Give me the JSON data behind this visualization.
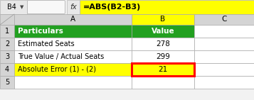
{
  "formula_bar_cell": "B4",
  "formula_bar_formula": "=ABS(B2-B3)",
  "col_headers": [
    "A",
    "B",
    "C"
  ],
  "row_numbers": [
    "1",
    "2",
    "3",
    "4",
    "5"
  ],
  "header_row": [
    "Particulars",
    "Value"
  ],
  "rows": [
    [
      "Estimated Seats",
      "278"
    ],
    [
      "True Value / Actual Seats",
      "299"
    ],
    [
      "Absolute Error (1) - (2)",
      "21"
    ]
  ],
  "header_bg": "#22A020",
  "header_text_color": "#FFFFFF",
  "row4_a_bg": "#FFFF00",
  "row4_b_bg": "#FFFF00",
  "row4_border_color": "#FF0000",
  "normal_bg": "#FFFFFF",
  "grid_color": "#AAAAAA",
  "formula_bar_bg": "#FFFF00",
  "formula_bar_label_bg": "#E8E8E8",
  "col_header_bg": "#D4D4D4",
  "spreadsheet_bg": "#F2F2F2",
  "top_bar_bg": "#E8E8E8",
  "fig_w": 3.57,
  "fig_h": 1.41,
  "dpi": 100
}
